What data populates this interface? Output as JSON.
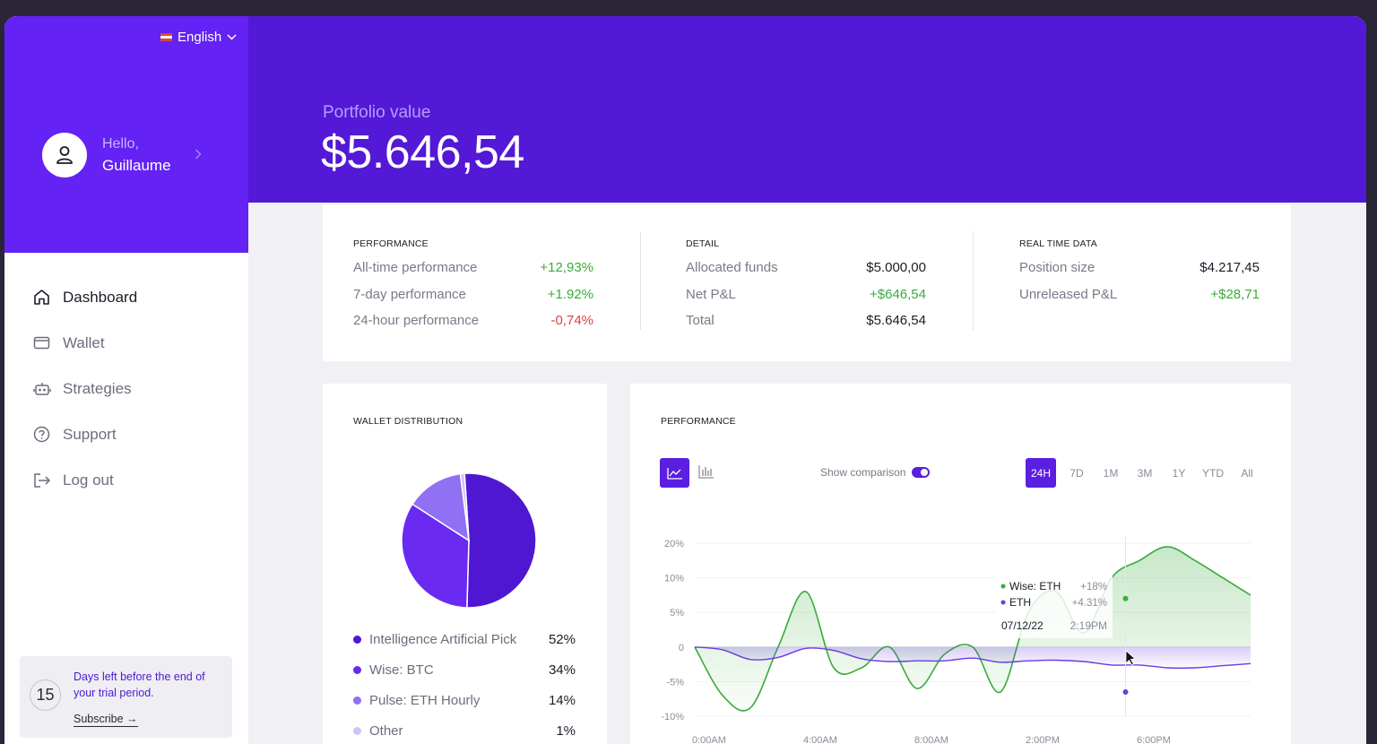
{
  "sidebar": {
    "language": "English",
    "greeting": "Hello,",
    "user_name": "Guillaume",
    "nav": [
      {
        "label": "Dashboard",
        "icon": "home-icon",
        "active": true
      },
      {
        "label": "Wallet",
        "icon": "wallet-icon"
      },
      {
        "label": "Strategies",
        "icon": "robot-icon"
      },
      {
        "label": "Support",
        "icon": "help-circle-icon"
      },
      {
        "label": "Log out",
        "icon": "logout-icon"
      }
    ],
    "trial": {
      "days": "15",
      "text": "Days left before the end of your trial period.",
      "subscribe": "Subscribe →"
    }
  },
  "header": {
    "label": "Portfolio value",
    "value": "$5.646,54"
  },
  "stats": {
    "performance": {
      "title": "PERFORMANCE",
      "rows": [
        {
          "label": "All-time performance",
          "value": "+12,93%"
        },
        {
          "label": "7-day performance",
          "value": "+1.92%"
        },
        {
          "label": "24-hour performance",
          "value": "-0,74%"
        }
      ]
    },
    "detail": {
      "title": "DETAIL",
      "rows": [
        {
          "label": "Allocated funds",
          "value": "$5.000,00"
        },
        {
          "label": "Net P&L",
          "value": "+$646,54"
        },
        {
          "label": "Total",
          "value": "$5.646,54"
        }
      ]
    },
    "realtime": {
      "title": "REAL TIME DATA",
      "rows": [
        {
          "label": "Position size",
          "value": "$4.217,45"
        },
        {
          "label": "Unreleased P&L",
          "value": "+$28,71"
        }
      ]
    }
  },
  "wallet": {
    "title": "WALLET DISTRIBUTION",
    "items": [
      {
        "name": "Intelligence Artificial Pick",
        "value": "52%"
      },
      {
        "name": "Wise: BTC",
        "value": "34%"
      },
      {
        "name": "Pulse: ETH Hourly",
        "value": "14%"
      },
      {
        "name": "Other",
        "value": "1%"
      }
    ]
  },
  "performance_chart": {
    "title": "PERFORMANCE",
    "show_comparison": "Show comparison",
    "ranges": [
      "24H",
      "7D",
      "1M",
      "3M",
      "1Y",
      "YTD",
      "All"
    ],
    "active_range": "24H",
    "tooltip": {
      "series1_name": "Wise: ETH",
      "series1_value": "+18%",
      "series2_name": "ETH",
      "series2_value": "+4.31%",
      "date": "07/12/22",
      "time": "2:19PM"
    }
  },
  "colors": {
    "brand": "#5319d6",
    "sidebar_top": "#6422f4",
    "accent": "#5a1fe0",
    "positive": "#3aab3a",
    "negative": "#dd4242"
  },
  "chart_data": [
    {
      "type": "pie",
      "title": "WALLET DISTRIBUTION",
      "categories": [
        "Intelligence Artificial Pick",
        "Wise: BTC",
        "Pulse: ETH Hourly",
        "Other"
      ],
      "values": [
        52,
        34,
        14,
        1
      ],
      "colors": [
        "#4f17d2",
        "#6a2af2",
        "#9070f3",
        "#cfc4f6"
      ]
    },
    {
      "type": "line",
      "title": "PERFORMANCE",
      "x": [
        0,
        1,
        2,
        3,
        4,
        5,
        6,
        7,
        8,
        9,
        10,
        11,
        12,
        13,
        14,
        15,
        16,
        17,
        18,
        19,
        20
      ],
      "xticks": [
        {
          "x": 0,
          "label": "0:00AM"
        },
        {
          "x": 4,
          "label": "4:00AM"
        },
        {
          "x": 8,
          "label": "8:00AM"
        },
        {
          "x": 12,
          "label": "2:00PM"
        },
        {
          "x": 16,
          "label": "6:00PM"
        }
      ],
      "yticks": [
        {
          "y": 20,
          "label": "20%"
        },
        {
          "y": 10,
          "label": "10%"
        },
        {
          "y": 5,
          "label": "5%"
        },
        {
          "y": 0,
          "label": "0"
        },
        {
          "y": -5,
          "label": "-5%"
        },
        {
          "y": -10,
          "label": "-10%"
        }
      ],
      "series": [
        {
          "name": "Wise: ETH",
          "color": "#3aab3a",
          "values": [
            0,
            -7,
            -8.8,
            0,
            8,
            -3,
            -3,
            0,
            -6,
            -1,
            0,
            -6.5,
            5,
            8,
            2,
            10,
            15,
            19,
            15,
            10,
            7.5
          ]
        },
        {
          "name": "ETH",
          "color": "#6a3be0",
          "values": [
            0,
            -0.4,
            -1.8,
            -1.5,
            -0.2,
            -0.5,
            -1.7,
            -2.1,
            -2.0,
            -2.0,
            -1.6,
            -2.2,
            -2.0,
            -1.9,
            -2.1,
            -2.6,
            -2.6,
            -3.0,
            -3.0,
            -2.7,
            -2.4
          ]
        }
      ],
      "ylim": [
        -10,
        20
      ]
    }
  ]
}
